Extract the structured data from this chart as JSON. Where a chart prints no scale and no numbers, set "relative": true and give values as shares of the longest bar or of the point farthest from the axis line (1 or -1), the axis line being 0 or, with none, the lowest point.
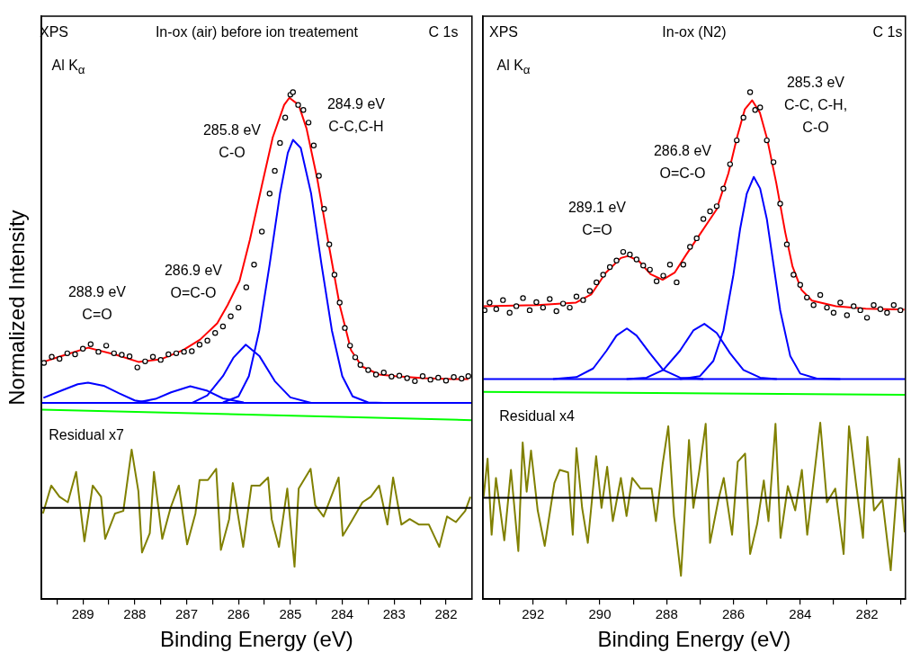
{
  "chart_data": [
    {
      "type": "line",
      "title": "In-ox (air) before ion treatement",
      "xlabel": "Binding Energy (eV)",
      "ylabel": "Normalized Intensity",
      "relative": true,
      "xlim": [
        289.8,
        281.5
      ],
      "xticks": [
        {
          "value": 289.5,
          "label": null
        },
        289,
        {
          "value": 288.5,
          "label": null
        },
        288,
        {
          "value": 287.5,
          "label": null
        },
        287,
        {
          "value": 286.5,
          "label": null
        },
        286,
        {
          "value": 285.5,
          "label": null
        },
        285,
        {
          "value": 284.5,
          "label": null
        },
        284,
        {
          "value": 283.5,
          "label": null
        },
        283,
        {
          "value": 282.5,
          "label": null
        },
        282
      ],
      "annotations": [
        "XPS",
        "Al K$_{α}$",
        "C 1s",
        "284.9 eV\nC-C,C-H",
        "285.8 eV\nC-O",
        "286.9 eV\nO=C-O",
        "288.9 eV\nC=O",
        "Residual x7"
      ],
      "ref_lines": [
        {
          "axis": "y",
          "value": 0.18,
          "color": "#000000"
        }
      ],
      "series": [
        {
          "type": "line",
          "color": "#00ff00",
          "marker": "none",
          "x": [
            289.8,
            281.5
          ],
          "values": [
            0.374,
            0.353
          ]
        },
        {
          "type": "line",
          "color": "#0000ff",
          "marker": "none",
          "x": [
            289.8,
            281.5
          ],
          "values": [
            0.387,
            0.387
          ]
        },
        {
          "type": "line",
          "color": "#0000ff",
          "marker": "none",
          "x": [
            289.76,
            289.4,
            289.1,
            288.9,
            288.6,
            288.3,
            288.0,
            287.7
          ],
          "values": [
            0.397,
            0.412,
            0.424,
            0.427,
            0.421,
            0.406,
            0.392,
            0.387
          ]
        },
        {
          "type": "line",
          "color": "#0000ff",
          "marker": "none",
          "x": [
            288.0,
            287.6,
            287.3,
            286.93,
            286.6,
            286.3,
            285.9
          ],
          "values": [
            0.387,
            0.395,
            0.408,
            0.42,
            0.411,
            0.396,
            0.388
          ]
        },
        {
          "type": "line",
          "color": "#0000ff",
          "marker": "none",
          "x": [
            286.9,
            286.6,
            286.3,
            286.1,
            285.86,
            285.6,
            285.3,
            285.0,
            284.6
          ],
          "values": [
            0.387,
            0.402,
            0.44,
            0.476,
            0.502,
            0.48,
            0.43,
            0.398,
            0.387
          ]
        },
        {
          "type": "line",
          "color": "#0000ff",
          "marker": "none",
          "x": [
            286.3,
            286.0,
            285.8,
            285.6,
            285.4,
            285.2,
            285.05,
            284.95,
            284.8,
            284.6,
            284.4,
            284.2,
            284.0,
            283.8,
            283.5,
            283.2
          ],
          "values": [
            0.388,
            0.4,
            0.44,
            0.53,
            0.66,
            0.8,
            0.88,
            0.906,
            0.89,
            0.8,
            0.66,
            0.53,
            0.44,
            0.4,
            0.388,
            0.387
          ]
        },
        {
          "type": "line",
          "color": "#808000",
          "marker": "none",
          "x": [
            289.77,
            289.61,
            289.45,
            289.29,
            289.13,
            288.97,
            288.81,
            288.65,
            288.57,
            288.38,
            288.22,
            288.06,
            287.93,
            287.86,
            287.71,
            287.63,
            287.47,
            287.31,
            287.15,
            286.99,
            286.83,
            286.75,
            286.59,
            286.43,
            286.34,
            286.18,
            286.11,
            285.91,
            285.75,
            285.59,
            285.43,
            285.36,
            285.22,
            285.06,
            284.92,
            284.84,
            284.61,
            284.52,
            284.36,
            284.07,
            283.99,
            283.83,
            283.61,
            283.45,
            283.29,
            283.13,
            283.02,
            282.86,
            282.7,
            282.52,
            282.33,
            282.13,
            281.98,
            281.81,
            281.63,
            281.53
          ],
          "values": [
            0.169,
            0.224,
            0.202,
            0.191,
            0.251,
            0.114,
            0.224,
            0.202,
            0.119,
            0.169,
            0.174,
            0.295,
            0.213,
            0.092,
            0.13,
            0.251,
            0.119,
            0.18,
            0.224,
            0.108,
            0.169,
            0.235,
            0.235,
            0.257,
            0.097,
            0.158,
            0.229,
            0.103,
            0.224,
            0.224,
            0.24,
            0.158,
            0.103,
            0.218,
            0.064,
            0.218,
            0.257,
            0.185,
            0.163,
            0.24,
            0.125,
            0.152,
            0.191,
            0.202,
            0.224,
            0.147,
            0.24,
            0.147,
            0.158,
            0.147,
            0.147,
            0.103,
            0.163,
            0.152,
            0.174,
            0.202
          ]
        },
        {
          "type": "scatter",
          "color": "#000000",
          "marker": "circle",
          "x": [
            289.75,
            289.6,
            289.45,
            289.3,
            289.15,
            289.0,
            288.85,
            288.7,
            288.55,
            288.4,
            288.25,
            288.1,
            287.95,
            287.8,
            287.65,
            287.5,
            287.35,
            287.2,
            287.05,
            286.9,
            286.75,
            286.6,
            286.45,
            286.3,
            286.15,
            286.0,
            285.85,
            285.7,
            285.55,
            285.4,
            285.3,
            285.2,
            285.1,
            285.0,
            284.95,
            284.85,
            284.75,
            284.65,
            284.55,
            284.45,
            284.35,
            284.25,
            284.15,
            284.05,
            283.95,
            283.85,
            283.75,
            283.65,
            283.5,
            283.35,
            283.2,
            283.05,
            282.9,
            282.75,
            282.6,
            282.45,
            282.3,
            282.15,
            282.0,
            281.85,
            281.7,
            281.57
          ],
          "values": [
            0.466,
            0.478,
            0.474,
            0.485,
            0.483,
            0.494,
            0.503,
            0.488,
            0.5,
            0.485,
            0.482,
            0.479,
            0.457,
            0.469,
            0.478,
            0.472,
            0.483,
            0.485,
            0.488,
            0.489,
            0.502,
            0.51,
            0.525,
            0.538,
            0.558,
            0.575,
            0.615,
            0.66,
            0.725,
            0.8,
            0.845,
            0.9,
            0.95,
            0.995,
            1.0,
            0.975,
            0.965,
            0.94,
            0.895,
            0.835,
            0.77,
            0.7,
            0.64,
            0.585,
            0.535,
            0.5,
            0.477,
            0.462,
            0.452,
            0.443,
            0.447,
            0.439,
            0.441,
            0.436,
            0.43,
            0.44,
            0.433,
            0.437,
            0.431,
            0.438,
            0.435,
            0.44
          ]
        },
        {
          "type": "line",
          "color": "#ff0000",
          "marker": "none",
          "x": [
            289.76,
            289.43,
            288.9,
            288.36,
            287.93,
            287.5,
            287.07,
            286.74,
            286.41,
            286.21,
            285.98,
            285.78,
            285.55,
            285.34,
            285.12,
            285.02,
            284.84,
            284.69,
            284.48,
            284.26,
            284.05,
            283.83,
            283.62,
            283.29,
            282.98,
            282.43,
            281.9,
            281.57
          ],
          "values": [
            0.468,
            0.479,
            0.496,
            0.482,
            0.468,
            0.473,
            0.491,
            0.512,
            0.544,
            0.58,
            0.628,
            0.709,
            0.816,
            0.911,
            0.975,
            0.989,
            0.975,
            0.929,
            0.828,
            0.699,
            0.58,
            0.491,
            0.459,
            0.443,
            0.44,
            0.436,
            0.434,
            0.434
          ]
        }
      ]
    },
    {
      "type": "line",
      "title": "In-ox (N2)",
      "xlabel": "Binding Energy (eV)",
      "relative": true,
      "xlim": [
        293.5,
        280.85
      ],
      "xticks": [
        {
          "value": 293,
          "label": null
        },
        292,
        {
          "value": 291,
          "label": null
        },
        290,
        {
          "value": 289,
          "label": null
        },
        288,
        {
          "value": 287,
          "label": null
        },
        286,
        {
          "value": 285,
          "label": null
        },
        284,
        {
          "value": 283,
          "label": null
        },
        282,
        {
          "value": 281,
          "label": null
        }
      ],
      "annotations": [
        "XPS",
        "Al K$_{α}$",
        "C 1s",
        "285.3 eV\nC-C, C-H,\nC-O",
        "286.8 eV\nO=C-O",
        "289.1 eV\nC=O",
        "Residual x4"
      ],
      "ref_lines": [
        {
          "axis": "y",
          "value": 0.2,
          "color": "#000000"
        }
      ],
      "series": [
        {
          "type": "line",
          "color": "#00ff00",
          "marker": "none",
          "x": [
            293.5,
            280.85
          ],
          "values": [
            0.409,
            0.403
          ]
        },
        {
          "type": "line",
          "color": "#0000ff",
          "marker": "none",
          "x": [
            293.5,
            280.85
          ],
          "values": [
            0.434,
            0.434
          ]
        },
        {
          "type": "line",
          "color": "#0000ff",
          "marker": "none",
          "x": [
            291.4,
            290.7,
            290.2,
            289.8,
            289.5,
            289.19,
            288.9,
            288.5,
            288.1,
            287.6,
            286.9
          ],
          "values": [
            0.434,
            0.438,
            0.455,
            0.49,
            0.52,
            0.534,
            0.52,
            0.485,
            0.452,
            0.437,
            0.434
          ]
        },
        {
          "type": "line",
          "color": "#0000ff",
          "marker": "none",
          "x": [
            289.2,
            288.6,
            288.1,
            287.6,
            287.2,
            286.87,
            286.5,
            286.1,
            285.7,
            285.2,
            284.7
          ],
          "values": [
            0.434,
            0.437,
            0.452,
            0.49,
            0.53,
            0.543,
            0.525,
            0.485,
            0.452,
            0.437,
            0.434
          ]
        },
        {
          "type": "line",
          "color": "#0000ff",
          "marker": "none",
          "x": [
            287.6,
            287.0,
            286.6,
            286.3,
            286.0,
            285.8,
            285.6,
            285.39,
            285.2,
            285.0,
            284.8,
            284.6,
            284.3,
            284.0,
            283.5,
            282.8
          ],
          "values": [
            0.434,
            0.44,
            0.47,
            0.53,
            0.64,
            0.73,
            0.8,
            0.833,
            0.81,
            0.75,
            0.66,
            0.57,
            0.48,
            0.445,
            0.435,
            0.434
          ]
        },
        {
          "type": "line",
          "color": "#808000",
          "marker": "none",
          "x": [
            293.48,
            293.36,
            293.24,
            293.11,
            292.86,
            292.66,
            292.44,
            292.31,
            292.19,
            292.06,
            291.86,
            291.65,
            291.36,
            291.2,
            290.95,
            290.81,
            290.7,
            290.53,
            290.36,
            290.11,
            289.95,
            289.78,
            289.61,
            289.37,
            289.2,
            289.03,
            288.78,
            288.45,
            288.32,
            288.12,
            287.95,
            287.78,
            287.57,
            287.33,
            287.2,
            287.03,
            286.83,
            286.7,
            286.45,
            286.29,
            286.04,
            285.87,
            285.65,
            285.5,
            285.29,
            285.09,
            284.95,
            284.74,
            284.59,
            284.37,
            284.15,
            283.95,
            283.79,
            283.62,
            283.4,
            283.2,
            282.95,
            282.7,
            282.54,
            282.32,
            282.12,
            281.99,
            281.79,
            281.54,
            281.29,
            281.04,
            280.87
          ],
          "values": [
            0.202,
            0.277,
            0.127,
            0.239,
            0.116,
            0.255,
            0.095,
            0.309,
            0.212,
            0.293,
            0.175,
            0.105,
            0.229,
            0.255,
            0.25,
            0.127,
            0.298,
            0.18,
            0.111,
            0.282,
            0.18,
            0.261,
            0.154,
            0.239,
            0.164,
            0.239,
            0.218,
            0.218,
            0.154,
            0.266,
            0.341,
            0.164,
            0.046,
            0.314,
            0.18,
            0.25,
            0.346,
            0.111,
            0.196,
            0.239,
            0.127,
            0.271,
            0.287,
            0.089,
            0.148,
            0.234,
            0.154,
            0.346,
            0.121,
            0.223,
            0.175,
            0.255,
            0.127,
            0.223,
            0.348,
            0.191,
            0.218,
            0.089,
            0.341,
            0.223,
            0.121,
            0.32,
            0.175,
            0.196,
            0.057,
            0.277,
            0.132
          ]
        },
        {
          "type": "scatter",
          "color": "#000000",
          "marker": "circle",
          "x": [
            293.45,
            293.3,
            293.1,
            292.9,
            292.7,
            292.5,
            292.3,
            292.1,
            291.9,
            291.7,
            291.5,
            291.3,
            291.1,
            290.9,
            290.7,
            290.5,
            290.3,
            290.1,
            289.9,
            289.7,
            289.5,
            289.3,
            289.1,
            288.9,
            288.7,
            288.5,
            288.3,
            288.1,
            287.9,
            287.7,
            287.5,
            287.3,
            287.1,
            286.9,
            286.7,
            286.5,
            286.3,
            286.1,
            285.9,
            285.7,
            285.5,
            285.35,
            285.2,
            285.0,
            284.8,
            284.6,
            284.4,
            284.2,
            284.0,
            283.8,
            283.6,
            283.4,
            283.2,
            283.0,
            282.8,
            282.6,
            282.4,
            282.2,
            282.0,
            281.8,
            281.6,
            281.4,
            281.2,
            281.0
          ],
          "values": [
            0.57,
            0.585,
            0.572,
            0.59,
            0.565,
            0.578,
            0.594,
            0.57,
            0.586,
            0.575,
            0.592,
            0.568,
            0.583,
            0.575,
            0.597,
            0.59,
            0.608,
            0.625,
            0.64,
            0.655,
            0.668,
            0.685,
            0.68,
            0.67,
            0.658,
            0.65,
            0.627,
            0.638,
            0.66,
            0.625,
            0.66,
            0.695,
            0.712,
            0.75,
            0.765,
            0.775,
            0.81,
            0.858,
            0.905,
            0.95,
            1.0,
            0.965,
            0.97,
            0.905,
            0.862,
            0.78,
            0.7,
            0.64,
            0.62,
            0.595,
            0.58,
            0.6,
            0.575,
            0.565,
            0.585,
            0.56,
            0.578,
            0.57,
            0.555,
            0.58,
            0.572,
            0.565,
            0.58,
            0.57
          ]
        },
        {
          "type": "line",
          "color": "#ff0000",
          "marker": "none",
          "x": [
            293.48,
            291.87,
            290.71,
            290.26,
            289.82,
            289.37,
            289.15,
            288.83,
            288.48,
            288.12,
            287.76,
            287.4,
            286.96,
            286.51,
            286.15,
            285.88,
            285.66,
            285.44,
            285.21,
            284.99,
            284.72,
            284.45,
            284.23,
            283.96,
            283.65,
            282.93,
            282.04,
            280.88
          ],
          "values": [
            0.578,
            0.58,
            0.585,
            0.601,
            0.644,
            0.673,
            0.677,
            0.667,
            0.641,
            0.63,
            0.644,
            0.681,
            0.724,
            0.768,
            0.84,
            0.914,
            0.966,
            0.984,
            0.96,
            0.908,
            0.822,
            0.724,
            0.656,
            0.61,
            0.589,
            0.578,
            0.573,
            0.571
          ]
        }
      ]
    }
  ]
}
